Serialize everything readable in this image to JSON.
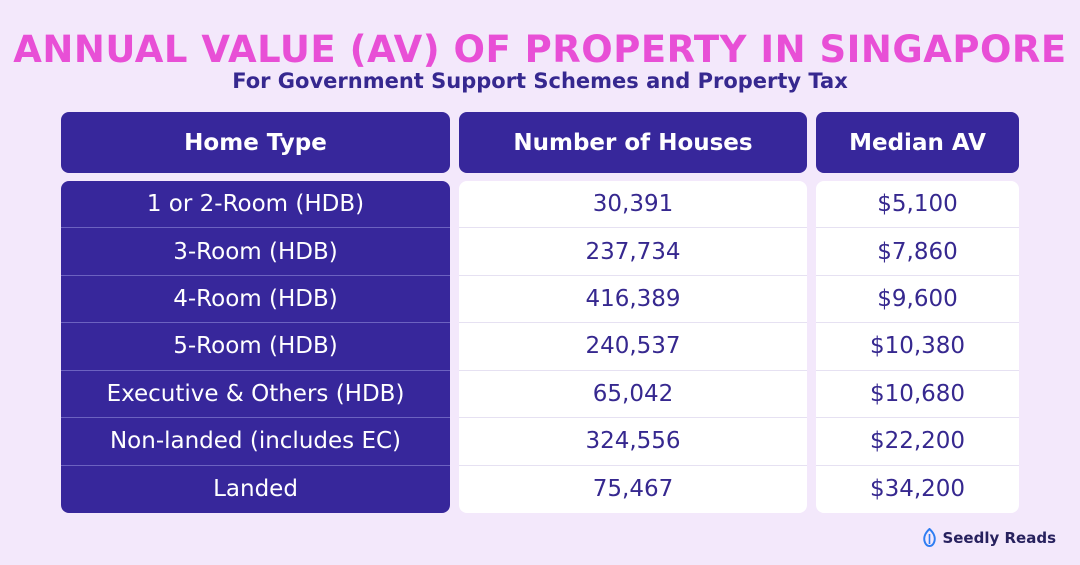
{
  "title": "ANNUAL VALUE (AV) OF PROPERTY IN SINGAPORE",
  "subtitle": "For Government Support Schemes and Property Tax",
  "brand": {
    "name": "Seedly Reads",
    "icon": "leaf-logo-icon",
    "icon_color": "#2e7df2"
  },
  "colors": {
    "header_bg": "#37279b",
    "title": "#e84fd6",
    "page_bg": "#f3e8fb"
  },
  "chart_data": {
    "type": "table",
    "columns": [
      "Home Type",
      "Number of Houses",
      "Median AV"
    ],
    "rows": [
      [
        "1 or 2-Room (HDB)",
        "30,391",
        "$5,100"
      ],
      [
        "3-Room (HDB)",
        "237,734",
        "$7,860"
      ],
      [
        "4-Room (HDB)",
        "416,389",
        "$9,600"
      ],
      [
        "5-Room (HDB)",
        "240,537",
        "$10,380"
      ],
      [
        "Executive & Others (HDB)",
        "65,042",
        "$10,680"
      ],
      [
        "Non-landed (includes EC)",
        "324,556",
        "$22,200"
      ],
      [
        "Landed",
        "75,467",
        "$34,200"
      ]
    ]
  }
}
